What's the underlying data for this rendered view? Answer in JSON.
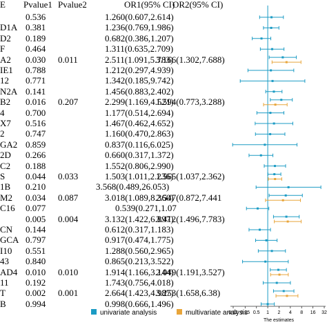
{
  "header": {
    "variable": "E",
    "pvalue1": "Pvalue1",
    "pvalue2": "Pvalue2",
    "or1": "OR1(95% CI)",
    "or2": "OR2(95% CI)"
  },
  "rows": [
    {
      "label": "",
      "p1": "0.536",
      "p2": "",
      "or1": "1.260(0.607,2.614)",
      "or2": ""
    },
    {
      "label": "D1A",
      "p1": "0.381",
      "p2": "",
      "or1": "1.236(0.769,1.986)",
      "or2": ""
    },
    {
      "label": "D2",
      "p1": "0.189",
      "p2": "",
      "or1": "0.682(0.386,1.207)",
      "or2": ""
    },
    {
      "label": "F",
      "p1": "0.464",
      "p2": "",
      "or1": "1.311(0.635,2.709)",
      "or2": ""
    },
    {
      "label": "A2",
      "p1": "0.030",
      "p2": "0.011",
      "or1": "2.511(1.091,5.783)",
      "or2": "3.166(1.302,7.688)"
    },
    {
      "label": "IE1",
      "p1": "0.788",
      "p2": "",
      "or1": "1.212(0.297,4.939)",
      "or2": ""
    },
    {
      "label": "12",
      "p1": "0.771",
      "p2": "",
      "or1": "1.342(0.185,9.742)",
      "or2": ""
    },
    {
      "label": "N2A",
      "p1": "0.141",
      "p2": "",
      "or1": "1.456(0.883,2.402)",
      "or2": ""
    },
    {
      "label": "B2",
      "p1": "0.016",
      "p2": "0.207",
      "or1": "2.299(1.169,4.521)",
      "or2": "1.594(0.773,3.288)"
    },
    {
      "label": "4",
      "p1": "0.700",
      "p2": "",
      "or1": "1.177(0.514,2.694)",
      "or2": ""
    },
    {
      "label": "X7",
      "p1": "0.516",
      "p2": "",
      "or1": "1.467(0.462,4.652)",
      "or2": ""
    },
    {
      "label": "2",
      "p1": "0.747",
      "p2": "",
      "or1": "1.160(0.470,2.863)",
      "or2": ""
    },
    {
      "label": "GA2",
      "p1": "0.859",
      "p2": "",
      "or1": "0.837(0.116,6.025)",
      "or2": ""
    },
    {
      "label": "2D",
      "p1": "0.266",
      "p2": "",
      "or1": "0.660(0.317,1.372)",
      "or2": ""
    },
    {
      "label": "C2",
      "p1": "0.188",
      "p2": "",
      "or1": "1.552(0.806,2.990)",
      "or2": ""
    },
    {
      "label": "S",
      "p1": "0.044",
      "p2": "0.033",
      "or1": "1.503(1.011,2.236)",
      "or2": "1.565(1.037,2.362)"
    },
    {
      "label": "1B",
      "p1": "0.210",
      "p2": "",
      "or1": "3.568(0.489,26.053)",
      "or2": ""
    },
    {
      "label": "M2",
      "p1": "0.034",
      "p2": "0.087",
      "or1": "3.018(1.089,8.360)",
      "or2": "2.547(0.872,7.441"
    },
    {
      "label": "C16",
      "p1": "0.077",
      "p2": "",
      "or1": "0.539(0.271,1.07",
      "or2": ""
    },
    {
      "label": "",
      "p1": "0.005",
      "p2": "0.004",
      "or1": "3.132(1.422,6.897)",
      "or2": "3.412(1.496,7.783)"
    },
    {
      "label": "CN",
      "p1": "0.144",
      "p2": "",
      "or1": "0.612(0.317,1.183)",
      "or2": ""
    },
    {
      "label": "GCA",
      "p1": "0.797",
      "p2": "",
      "or1": "0.917(0.474,1.775)",
      "or2": ""
    },
    {
      "label": "I10",
      "p1": "0.551",
      "p2": "",
      "or1": "1.288(0.560,2.965)",
      "or2": ""
    },
    {
      "label": "43",
      "p1": "0.840",
      "p2": "",
      "or1": "0.865(0.213,3.522)",
      "or2": ""
    },
    {
      "label": "AD4",
      "p1": "0.010",
      "p2": "0.010",
      "or1": "1.914(1.166,3.144)",
      "or2": "2.049(1.191,3.527)"
    },
    {
      "label": "11",
      "p1": "0.192",
      "p2": "",
      "or1": "1.743(0.756,4.018)",
      "or2": ""
    },
    {
      "label": "T",
      "p1": "0.002",
      "p2": "0.001",
      "or1": "2.664(1.423,4.987)",
      "or2": "3.253(1.658,6.38)"
    },
    {
      "label": "B",
      "p1": "0.994",
      "p2": "",
      "or1": "0.998(0.666,1.496)",
      "or2": ""
    }
  ],
  "chart_data": {
    "type": "forest",
    "scale": "log",
    "reference_line": 1,
    "xlabel": "The estimates",
    "xticks": [
      "0.12",
      "0.25",
      "0.5",
      "1",
      "2",
      "4",
      "8",
      "16",
      "32"
    ],
    "legend": [
      {
        "name": "univariate analysis",
        "color": "#1b9bc4"
      },
      {
        "name": "multivariate analysis",
        "color": "#e8a53a"
      }
    ],
    "series": [
      {
        "name": "univariate analysis",
        "color": "#1b9bc4",
        "points": [
          {
            "or": 1.26,
            "low": 0.607,
            "high": 2.614
          },
          {
            "or": 1.236,
            "low": 0.769,
            "high": 1.986
          },
          {
            "or": 0.682,
            "low": 0.386,
            "high": 1.207
          },
          {
            "or": 1.311,
            "low": 0.635,
            "high": 2.709
          },
          {
            "or": 2.511,
            "low": 1.091,
            "high": 5.783
          },
          {
            "or": 1.212,
            "low": 0.297,
            "high": 4.939
          },
          {
            "or": 1.342,
            "low": 0.185,
            "high": 9.742
          },
          {
            "or": 1.456,
            "low": 0.883,
            "high": 2.402
          },
          {
            "or": 2.299,
            "low": 1.169,
            "high": 4.521
          },
          {
            "or": 1.177,
            "low": 0.514,
            "high": 2.694
          },
          {
            "or": 1.467,
            "low": 0.462,
            "high": 4.652
          },
          {
            "or": 1.16,
            "low": 0.47,
            "high": 2.863
          },
          {
            "or": 0.837,
            "low": 0.116,
            "high": 6.025
          },
          {
            "or": 0.66,
            "low": 0.317,
            "high": 1.372
          },
          {
            "or": 1.552,
            "low": 0.806,
            "high": 2.99
          },
          {
            "or": 1.503,
            "low": 1.011,
            "high": 2.236
          },
          {
            "or": 3.568,
            "low": 0.489,
            "high": 26.053
          },
          {
            "or": 3.018,
            "low": 1.089,
            "high": 8.36
          },
          {
            "or": 0.539,
            "low": 0.271,
            "high": 1.07
          },
          {
            "or": 3.132,
            "low": 1.422,
            "high": 6.897
          },
          {
            "or": 0.612,
            "low": 0.317,
            "high": 1.183
          },
          {
            "or": 0.917,
            "low": 0.474,
            "high": 1.775
          },
          {
            "or": 1.288,
            "low": 0.56,
            "high": 2.965
          },
          {
            "or": 0.865,
            "low": 0.213,
            "high": 3.522
          },
          {
            "or": 1.914,
            "low": 1.166,
            "high": 3.144
          },
          {
            "or": 1.743,
            "low": 0.756,
            "high": 4.018
          },
          {
            "or": 2.664,
            "low": 1.423,
            "high": 4.987
          },
          {
            "or": 0.998,
            "low": 0.666,
            "high": 1.496
          }
        ]
      },
      {
        "name": "multivariate analysis",
        "color": "#e8a53a",
        "points": [
          null,
          null,
          null,
          null,
          {
            "or": 3.166,
            "low": 1.302,
            "high": 7.688
          },
          null,
          null,
          null,
          {
            "or": 1.594,
            "low": 0.773,
            "high": 3.288
          },
          null,
          null,
          null,
          null,
          null,
          null,
          {
            "or": 1.565,
            "low": 1.037,
            "high": 2.362
          },
          null,
          {
            "or": 2.547,
            "low": 0.872,
            "high": 7.441
          },
          null,
          {
            "or": 3.412,
            "low": 1.496,
            "high": 7.783
          },
          null,
          null,
          null,
          null,
          {
            "or": 2.049,
            "low": 1.191,
            "high": 3.527
          },
          null,
          {
            "or": 3.253,
            "low": 1.658,
            "high": 6.38
          },
          null
        ]
      }
    ]
  }
}
